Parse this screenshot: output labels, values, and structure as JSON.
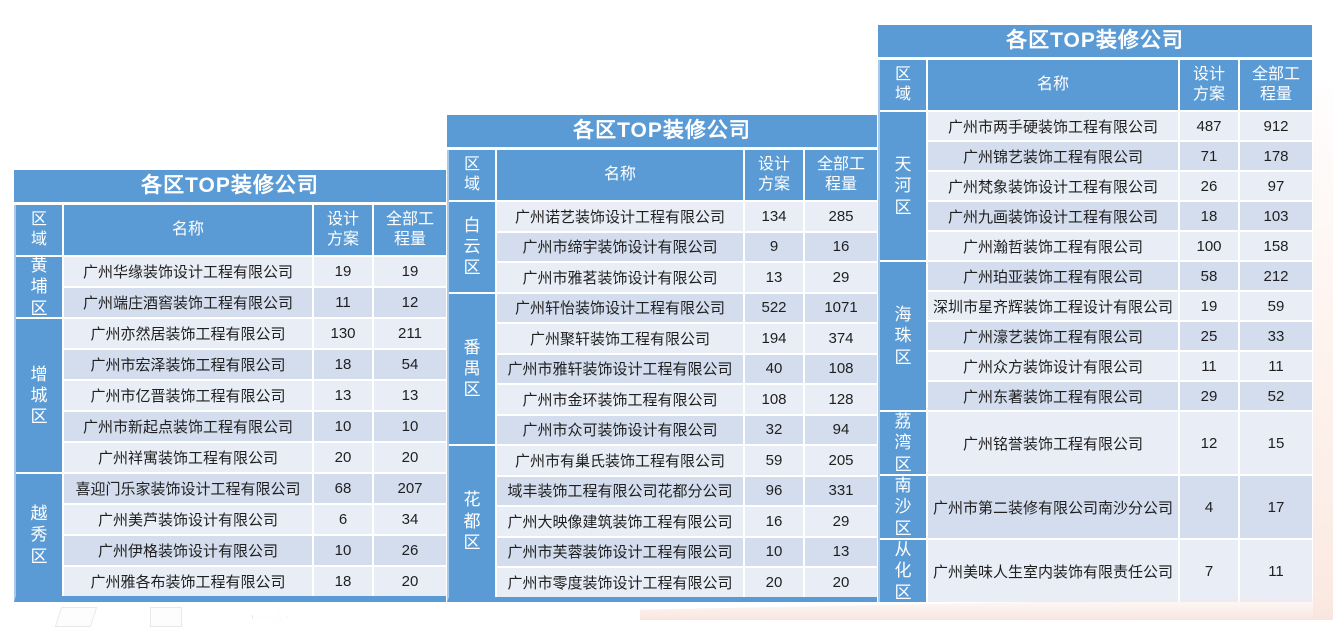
{
  "colors": {
    "accent_blue": "#5b9bd5",
    "row_light": "#e9edf6",
    "row_dark": "#d3ddee",
    "header_text": "#ffffff",
    "body_text": "#1f1f1f"
  },
  "columns": {
    "region": "区\n域",
    "name": "名称",
    "design": "设计\n方案",
    "total": "全部工\n程量"
  },
  "tables": [
    {
      "title": "各区TOP装修公司",
      "regions": [
        {
          "name": "黄\n埔\n区",
          "companies": [
            {
              "name": "广州华缘装饰设计工程有限公司",
              "design": 19,
              "total": 19
            },
            {
              "name": "广州端庄酒窖装饰工程有限公司",
              "design": 11,
              "total": 12
            }
          ]
        },
        {
          "name": "增\n城\n区",
          "companies": [
            {
              "name": "广州亦然居装饰工程有限公司",
              "design": 130,
              "total": 211
            },
            {
              "name": "广州市宏泽装饰工程有限公司",
              "design": 18,
              "total": 54
            },
            {
              "name": "广州市亿晋装饰工程有限公司",
              "design": 13,
              "total": 13
            },
            {
              "name": "广州市新起点装饰工程有限公司",
              "design": 10,
              "total": 10
            },
            {
              "name": "广州祥寓装饰工程有限公司",
              "design": 20,
              "total": 20
            }
          ]
        },
        {
          "name": "越\n秀\n区",
          "companies": [
            {
              "name": "喜迎门乐家装饰设计工程有限公司",
              "design": 68,
              "total": 207
            },
            {
              "name": "广州美芦装饰设计有限公司",
              "design": 6,
              "total": 34
            },
            {
              "name": "广州伊格装饰设计有限公司",
              "design": 10,
              "total": 26
            },
            {
              "name": "广州雅各布装饰工程有限公司",
              "design": 18,
              "total": 20
            }
          ]
        }
      ]
    },
    {
      "title": "各区TOP装修公司",
      "regions": [
        {
          "name": "白\n云\n区",
          "companies": [
            {
              "name": "广州诺艺装饰设计工程有限公司",
              "design": 134,
              "total": 285
            },
            {
              "name": "广州市缔宇装饰设计有限公司",
              "design": 9,
              "total": 16
            },
            {
              "name": "广州市雅茗装饰设计有限公司",
              "design": 13,
              "total": 29
            }
          ]
        },
        {
          "name": "番\n禺\n区",
          "companies": [
            {
              "name": "广州轩怡装饰设计工程有限公司",
              "design": 522,
              "total": 1071
            },
            {
              "name": "广州聚轩装饰工程有限公司",
              "design": 194,
              "total": 374
            },
            {
              "name": "广州市雅轩装饰设计工程有限公司",
              "design": 40,
              "total": 108
            },
            {
              "name": "广州市金环装饰工程有限公司",
              "design": 108,
              "total": 128
            },
            {
              "name": "广州市众可装饰设计有限公司",
              "design": 32,
              "total": 94
            }
          ]
        },
        {
          "name": "花\n都\n区",
          "companies": [
            {
              "name": "广州市有巢氏装饰工程有限公司",
              "design": 59,
              "total": 205
            },
            {
              "name": "域丰装饰工程有限公司花都分公司",
              "design": 96,
              "total": 331
            },
            {
              "name": "广州大映像建筑装饰工程有限公司",
              "design": 16,
              "total": 29
            },
            {
              "name": "广州市芙蓉装饰设计工程有限公司",
              "design": 10,
              "total": 13
            },
            {
              "name": "广州市零度装饰设计工程有限公司",
              "design": 20,
              "total": 20
            }
          ]
        }
      ]
    },
    {
      "title": "各区TOP装修公司",
      "regions": [
        {
          "name": "天\n河\n区",
          "companies": [
            {
              "name": "广州市两手硬装饰工程有限公司",
              "design": 487,
              "total": 912
            },
            {
              "name": "广州锦艺装饰工程有限公司",
              "design": 71,
              "total": 178
            },
            {
              "name": "广州梵象装饰设计工程有限公司",
              "design": 26,
              "total": 97
            },
            {
              "name": "广州九画装饰设计工程有限公司",
              "design": 18,
              "total": 103
            },
            {
              "name": "广州瀚哲装饰工程有限公司",
              "design": 100,
              "total": 158
            }
          ]
        },
        {
          "name": "海\n珠\n区",
          "companies": [
            {
              "name": "广州珀亚装饰工程有限公司",
              "design": 58,
              "total": 212
            },
            {
              "name": "深圳市星齐辉装饰工程设计有限公司",
              "design": 19,
              "total": 59
            },
            {
              "name": "广州濠艺装饰工程有限公司",
              "design": 25,
              "total": 33
            },
            {
              "name": "广州众方装饰设计有限公司",
              "design": 11,
              "total": 11
            },
            {
              "name": "广州东著装饰工程有限公司",
              "design": 29,
              "total": 52
            }
          ]
        },
        {
          "name": "荔\n湾\n区",
          "companies": [
            {
              "name": "广州铭誉装饰工程有限公司",
              "design": 12,
              "total": 15
            }
          ]
        },
        {
          "name": "南\n沙\n区",
          "companies": [
            {
              "name": "广州市第二装修有限公司南沙分公司",
              "design": 4,
              "total": 17
            }
          ]
        },
        {
          "name": "从\n化\n区",
          "companies": [
            {
              "name": "广州美味人生室内装饰有限责任公司",
              "design": 7,
              "total": 11
            }
          ]
        }
      ]
    }
  ]
}
